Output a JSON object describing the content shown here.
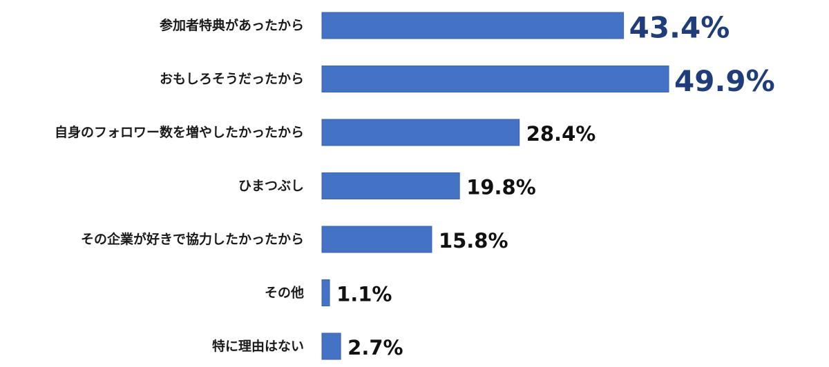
{
  "chart_data": {
    "type": "bar",
    "orientation": "horizontal",
    "categories": [
      "参加者特典があったから",
      "おもしろそうだったから",
      "自身のフォロワー数を増やしたかったから",
      "ひまつぶし",
      "その企業が好きで協力したかったから",
      "その他",
      "特に理由はない"
    ],
    "values": [
      43.4,
      49.9,
      28.4,
      19.8,
      15.8,
      1.1,
      2.7
    ],
    "value_labels": [
      "43.4%",
      "49.9%",
      "28.4%",
      "19.8%",
      "15.8%",
      "1.1%",
      "2.7%"
    ],
    "emphasized": [
      true,
      true,
      false,
      false,
      false,
      false,
      false
    ],
    "bar_color": "#4472c4",
    "emphasis_label_color": "#1f3d7a",
    "grid": false,
    "legend": "none"
  }
}
